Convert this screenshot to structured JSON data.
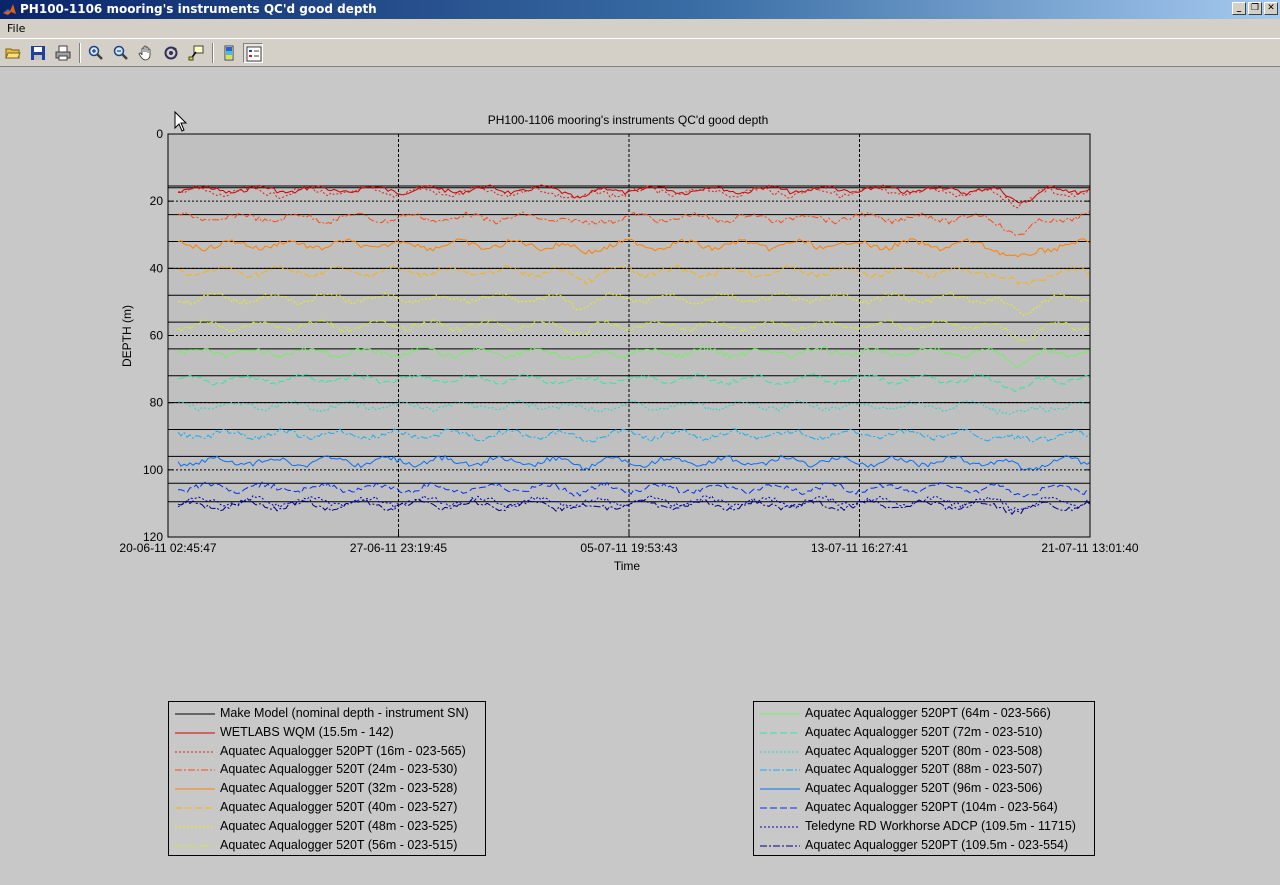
{
  "window": {
    "title": "PH100-1106 mooring's instruments QC'd good depth",
    "buttons": [
      "_",
      "❐",
      "✕"
    ]
  },
  "menu": {
    "items": [
      "File"
    ]
  },
  "toolbar": {
    "items": [
      "open-icon",
      "save-icon",
      "print-icon",
      "zoom-in-icon",
      "zoom-out-icon",
      "pan-icon",
      "rotate-icon",
      "data-cursor-icon",
      "colorbar-icon",
      "legend-icon"
    ]
  },
  "chart_data": {
    "type": "line",
    "title": "PH100-1106 mooring's instruments QC'd good depth",
    "xlabel": "Time",
    "ylabel": "DEPTH (m)",
    "ylim": [
      0,
      120
    ],
    "y_reversed": true,
    "yticks": [
      "0",
      "20",
      "40",
      "60",
      "80",
      "100",
      "120"
    ],
    "xticks": [
      "20-06-11 02:45:47",
      "27-06-11 23:19:45",
      "05-07-11 19:53:43",
      "13-07-11 16:27:41",
      "21-07-11 13:01:40"
    ],
    "grid": "x-dotted",
    "background": "#c0c0c0",
    "nominal_depths": [
      15.5,
      16,
      24,
      32,
      40,
      48,
      56,
      64,
      72,
      80,
      88,
      96,
      104,
      109.5
    ],
    "series": [
      {
        "name": "Make Model (nominal depth - instrument SN)",
        "color": "#000000",
        "style": "solid",
        "depth": null
      },
      {
        "name": "WETLABS WQM (15.5m - 142)",
        "color": "#d00000",
        "style": "solid",
        "depth": 16.6
      },
      {
        "name": "Aquatec Aqualogger 520PT (16m - 023-565)",
        "color": "#e02010",
        "style": "dotted",
        "depth": 17.3
      },
      {
        "name": "Aquatec Aqualogger 520T (24m - 023-530)",
        "color": "#ff4a10",
        "style": "dashdot",
        "depth": 25.0
      },
      {
        "name": "Aquatec Aqualogger 520T (32m - 023-528)",
        "color": "#ff8000",
        "style": "solid",
        "depth": 33.0
      },
      {
        "name": "Aquatec Aqualogger 520T (40m - 023-527)",
        "color": "#ffb000",
        "style": "dashed",
        "depth": 41.0
      },
      {
        "name": "Aquatec Aqualogger 520T (48m - 023-525)",
        "color": "#f0f000",
        "style": "dotted",
        "depth": 49.0
      },
      {
        "name": "Aquatec Aqualogger 520T (56m - 023-515)",
        "color": "#c8ec30",
        "style": "dashdot",
        "depth": 57.0
      },
      {
        "name": "Aquatec Aqualogger 520PT (64m - 023-566)",
        "color": "#70f060",
        "style": "solid",
        "depth": 65.0
      },
      {
        "name": "Aquatec Aqualogger 520T (72m - 023-510)",
        "color": "#30e8a0",
        "style": "dashed",
        "depth": 73.0
      },
      {
        "name": "Aquatec Aqualogger 520T (80m - 023-508)",
        "color": "#20d8d0",
        "style": "dotted",
        "depth": 81.0
      },
      {
        "name": "Aquatec Aqualogger 520T (88m - 023-507)",
        "color": "#10b0f0",
        "style": "dashdot",
        "depth": 89.5
      },
      {
        "name": "Aquatec Aqualogger 520T (96m - 023-506)",
        "color": "#0870f8",
        "style": "solid",
        "depth": 97.5
      },
      {
        "name": "Aquatec Aqualogger 520PT (104m - 023-564)",
        "color": "#0030f0",
        "style": "dashed",
        "depth": 105.5
      },
      {
        "name": "Teledyne RD Workhorse ADCP (109.5m - 11715)",
        "color": "#0000c8",
        "style": "dotted",
        "depth": 109.5
      },
      {
        "name": "Aquatec Aqualogger 520PT (109.5m - 023-554)",
        "color": "#000080",
        "style": "dashdot",
        "depth": 110.5
      }
    ],
    "legend_placement": "bottom, two boxes"
  }
}
